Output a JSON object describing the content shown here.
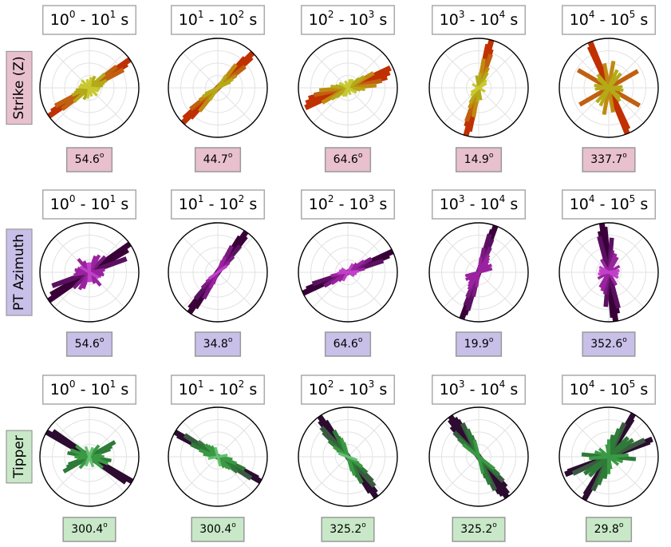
{
  "figure": {
    "columns": [
      "10^0 - 10^1 s",
      "10^1 - 10^2 s",
      "10^2 - 10^3 s",
      "10^3 - 10^4 s",
      "10^4 - 10^5 s"
    ]
  },
  "chart_data": [
    {
      "type": "polar-rose",
      "row_label": "Strike (Z)",
      "label_color": "#e8c0ce",
      "palette": [
        "#c03000",
        "#c06010",
        "#c08a10",
        "#b4aa18",
        "#c8c830"
      ],
      "panels": [
        {
          "title": "10^0 - 10^1 s",
          "value_label": "54.6^o",
          "petals": [
            [
              55,
              1.0
            ],
            [
              58,
              0.9
            ],
            [
              62,
              0.78
            ],
            [
              52,
              0.7
            ],
            [
              48,
              0.42
            ],
            [
              67,
              0.38
            ],
            [
              72,
              0.32
            ],
            [
              80,
              0.28
            ],
            [
              95,
              0.22
            ],
            [
              110,
              0.2
            ],
            [
              135,
              0.22
            ],
            [
              10,
              0.22
            ],
            [
              25,
              0.26
            ],
            [
              165,
              0.18
            ]
          ]
        },
        {
          "title": "10^1 - 10^2 s",
          "value_label": "44.7^o",
          "petals": [
            [
              45,
              1.0
            ],
            [
              48,
              0.92
            ],
            [
              42,
              0.82
            ],
            [
              52,
              0.7
            ],
            [
              38,
              0.6
            ],
            [
              56,
              0.45
            ],
            [
              60,
              0.35
            ],
            [
              65,
              0.28
            ],
            [
              33,
              0.3
            ]
          ]
        },
        {
          "title": "10^2 - 10^3 s",
          "value_label": "64.6^o",
          "petals": [
            [
              65,
              0.95
            ],
            [
              70,
              0.9
            ],
            [
              75,
              0.82
            ],
            [
              78,
              0.7
            ],
            [
              60,
              0.6
            ],
            [
              85,
              0.58
            ],
            [
              55,
              0.4
            ],
            [
              95,
              0.35
            ],
            [
              50,
              0.3
            ],
            [
              100,
              0.25
            ],
            [
              120,
              0.2
            ],
            [
              30,
              0.2
            ],
            [
              15,
              0.18
            ],
            [
              160,
              0.15
            ]
          ]
        },
        {
          "title": "10^3 - 10^4 s",
          "value_label": "14.9^o",
          "petals": [
            [
              15,
              1.0
            ],
            [
              12,
              0.9
            ],
            [
              18,
              0.82
            ],
            [
              20,
              0.72
            ],
            [
              10,
              0.6
            ],
            [
              25,
              0.45
            ],
            [
              30,
              0.35
            ],
            [
              5,
              0.3
            ],
            [
              170,
              0.25
            ],
            [
              45,
              0.22
            ],
            [
              60,
              0.18
            ],
            [
              120,
              0.15
            ]
          ]
        },
        {
          "title": "10^4 - 10^5 s",
          "value_label": "337.7^o",
          "petals": [
            [
              338,
              1.0
            ],
            [
              335,
              0.92
            ],
            [
              300,
              0.72
            ],
            [
              60,
              0.68
            ],
            [
              10,
              0.55
            ],
            [
              350,
              0.5
            ],
            [
              25,
              0.4
            ],
            [
              320,
              0.35
            ],
            [
              280,
              0.3
            ],
            [
              85,
              0.28
            ],
            [
              100,
              0.24
            ],
            [
              40,
              0.38
            ],
            [
              310,
              0.3
            ]
          ]
        }
      ]
    },
    {
      "type": "polar-rose",
      "row_label": "PT Azimuth",
      "label_color": "#c8c0e8",
      "palette": [
        "#3a0038",
        "#5a1060",
        "#7a1a80",
        "#9a22a0",
        "#c040c8"
      ],
      "panels": [
        {
          "title": "10^0 - 10^1 s",
          "value_label": "54.6^o",
          "petals": [
            [
              55,
              1.0
            ],
            [
              60,
              0.9
            ],
            [
              70,
              0.8
            ],
            [
              45,
              0.45
            ],
            [
              30,
              0.4
            ],
            [
              20,
              0.35
            ],
            [
              80,
              0.32
            ],
            [
              90,
              0.28
            ],
            [
              100,
              0.3
            ],
            [
              140,
              0.35
            ],
            [
              155,
              0.25
            ],
            [
              120,
              0.22
            ],
            [
              5,
              0.2
            ],
            [
              170,
              0.2
            ],
            [
              110,
              0.25
            ]
          ]
        },
        {
          "title": "10^1 - 10^2 s",
          "value_label": "34.8^o",
          "petals": [
            [
              35,
              1.0
            ],
            [
              38,
              0.92
            ],
            [
              32,
              0.85
            ],
            [
              40,
              0.7
            ],
            [
              28,
              0.6
            ],
            [
              45,
              0.45
            ],
            [
              25,
              0.35
            ],
            [
              50,
              0.3
            ],
            [
              20,
              0.25
            ],
            [
              55,
              0.22
            ]
          ]
        },
        {
          "title": "10^2 - 10^3 s",
          "value_label": "64.6^o",
          "petals": [
            [
              65,
              1.0
            ],
            [
              68,
              0.9
            ],
            [
              72,
              0.75
            ],
            [
              60,
              0.55
            ],
            [
              55,
              0.4
            ],
            [
              78,
              0.35
            ],
            [
              45,
              0.25
            ],
            [
              85,
              0.22
            ],
            [
              30,
              0.2
            ],
            [
              100,
              0.18
            ],
            [
              120,
              0.15
            ]
          ]
        },
        {
          "title": "10^3 - 10^4 s",
          "value_label": "19.9^o",
          "petals": [
            [
              20,
              1.0
            ],
            [
              18,
              0.9
            ],
            [
              16,
              0.8
            ],
            [
              22,
              0.72
            ],
            [
              25,
              0.55
            ],
            [
              12,
              0.5
            ],
            [
              30,
              0.4
            ],
            [
              35,
              0.35
            ],
            [
              40,
              0.3
            ],
            [
              60,
              0.3
            ],
            [
              75,
              0.28
            ],
            [
              8,
              0.3
            ],
            [
              50,
              0.25
            ]
          ]
        },
        {
          "title": "10^4 - 10^5 s",
          "value_label": "352.6^o",
          "petals": [
            [
              352,
              1.0
            ],
            [
              355,
              0.92
            ],
            [
              348,
              0.85
            ],
            [
              345,
              0.75
            ],
            [
              5,
              0.7
            ],
            [
              10,
              0.45
            ],
            [
              20,
              0.4
            ],
            [
              30,
              0.35
            ],
            [
              60,
              0.25
            ],
            [
              80,
              0.22
            ],
            [
              100,
              0.2
            ],
            [
              330,
              0.3
            ],
            [
              300,
              0.22
            ],
            [
              280,
              0.2
            ]
          ]
        }
      ]
    },
    {
      "type": "polar-rose",
      "row_label": "Tipper",
      "label_color": "#c8e8c8",
      "palette": [
        "#2c0c30",
        "#3a5a40",
        "#2e7a38",
        "#3a9a44",
        "#64c070"
      ],
      "panels": [
        {
          "title": "10^0 - 10^1 s",
          "value_label": "300.4^o",
          "petals": [
            [
              300,
              1.0
            ],
            [
              305,
              0.9
            ],
            [
              60,
              0.6
            ],
            [
              65,
              0.5
            ],
            [
              70,
              0.45
            ],
            [
              280,
              0.45
            ],
            [
              290,
              0.4
            ],
            [
              310,
              0.35
            ],
            [
              20,
              0.2
            ],
            [
              40,
              0.3
            ],
            [
              90,
              0.3
            ],
            [
              130,
              0.25
            ],
            [
              160,
              0.22
            ],
            [
              200,
              0.2
            ],
            [
              260,
              0.25
            ]
          ]
        },
        {
          "title": "10^1 - 10^2 s",
          "value_label": "300.4^o",
          "petals": [
            [
              300,
              1.0
            ],
            [
              298,
              0.92
            ],
            [
              303,
              0.8
            ],
            [
              295,
              0.6
            ],
            [
              308,
              0.5
            ],
            [
              290,
              0.4
            ],
            [
              315,
              0.35
            ],
            [
              280,
              0.3
            ],
            [
              320,
              0.3
            ],
            [
              330,
              0.25
            ],
            [
              345,
              0.2
            ],
            [
              260,
              0.2
            ]
          ]
        },
        {
          "title": "10^2 - 10^3 s",
          "value_label": "325.2^o",
          "petals": [
            [
              325,
              1.0
            ],
            [
              322,
              0.92
            ],
            [
              328,
              0.85
            ],
            [
              318,
              0.8
            ],
            [
              315,
              0.7
            ],
            [
              332,
              0.6
            ],
            [
              310,
              0.5
            ],
            [
              335,
              0.45
            ],
            [
              340,
              0.4
            ],
            [
              305,
              0.35
            ],
            [
              345,
              0.3
            ],
            [
              300,
              0.25
            ],
            [
              290,
              0.2
            ]
          ]
        },
        {
          "title": "10^3 - 10^4 s",
          "value_label": "325.2^o",
          "petals": [
            [
              325,
              1.0
            ],
            [
              322,
              0.95
            ],
            [
              328,
              0.92
            ],
            [
              330,
              0.85
            ],
            [
              318,
              0.82
            ],
            [
              334,
              0.75
            ],
            [
              315,
              0.7
            ],
            [
              338,
              0.6
            ],
            [
              312,
              0.55
            ],
            [
              342,
              0.45
            ],
            [
              308,
              0.4
            ],
            [
              346,
              0.35
            ]
          ]
        },
        {
          "title": "10^4 - 10^5 s",
          "value_label": "29.8^o",
          "petals": [
            [
              30,
              1.0
            ],
            [
              32,
              0.9
            ],
            [
              68,
              0.95
            ],
            [
              70,
              0.88
            ],
            [
              65,
              0.8
            ],
            [
              25,
              0.75
            ],
            [
              20,
              0.6
            ],
            [
              45,
              0.55
            ],
            [
              55,
              0.6
            ],
            [
              10,
              0.45
            ],
            [
              85,
              0.4
            ],
            [
              95,
              0.55
            ],
            [
              110,
              0.3
            ],
            [
              130,
              0.25
            ],
            [
              0,
              0.35
            ],
            [
              350,
              0.25
            ]
          ]
        }
      ]
    }
  ]
}
